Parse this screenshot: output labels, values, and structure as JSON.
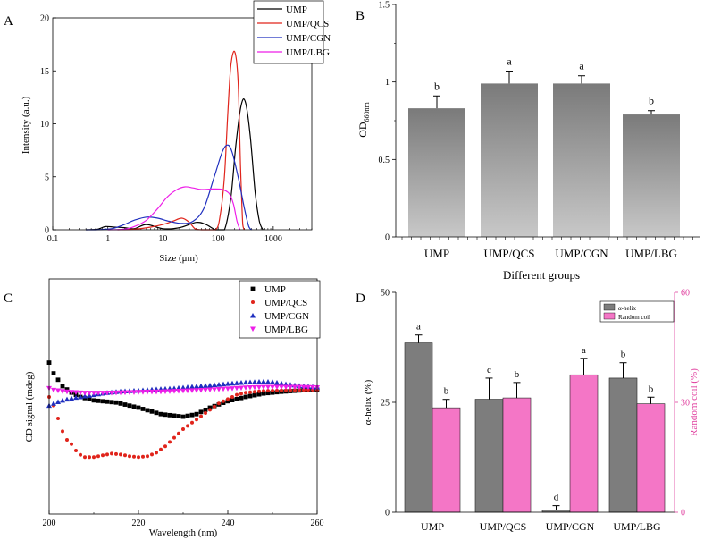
{
  "colors": {
    "black": "#000000",
    "red": "#e0241b",
    "blue": "#1f2fbf",
    "magenta": "#ee1ee8",
    "bar_dark": "#7a7a7a",
    "bar_light": "#c8c8c8",
    "alpha_bar": "#7d7d7d",
    "coil_bar": "#f476c6",
    "coil_axis": "#e0409f"
  },
  "chart_data": [
    {
      "panel": "A",
      "type": "line",
      "xlabel": "Size (μm)",
      "ylabel": "Intensity (a.u.)",
      "xscale": "log",
      "xlim": [
        0.1,
        5000
      ],
      "ylim": [
        0,
        20
      ],
      "xticks": [
        "0.1",
        "1",
        "10",
        "100",
        "1000"
      ],
      "yticks": [
        "0",
        "5",
        "10",
        "15",
        "20"
      ],
      "legend_position": "top-right",
      "series": [
        {
          "name": "UMP",
          "color": "#000000",
          "points": [
            [
              0.4,
              0
            ],
            [
              0.65,
              0.05
            ],
            [
              0.9,
              0.3
            ],
            [
              1.3,
              0.25
            ],
            [
              2,
              0.2
            ],
            [
              3,
              0.1
            ],
            [
              5,
              0.5
            ],
            [
              10,
              0.1
            ],
            [
              20,
              0.2
            ],
            [
              40,
              0.7
            ],
            [
              60,
              0.5
            ],
            [
              90,
              0
            ],
            [
              130,
              0
            ],
            [
              170,
              3
            ],
            [
              210,
              8
            ],
            [
              260,
              11.7
            ],
            [
              310,
              12.1
            ],
            [
              380,
              9
            ],
            [
              470,
              3.5
            ],
            [
              560,
              0.8
            ],
            [
              650,
              0
            ]
          ]
        },
        {
          "name": "UMP/QCS",
          "color": "#e0241b",
          "points": [
            [
              1.5,
              0
            ],
            [
              3,
              0.05
            ],
            [
              6,
              0.25
            ],
            [
              10,
              0.5
            ],
            [
              15,
              0.8
            ],
            [
              22,
              1.1
            ],
            [
              30,
              0.7
            ],
            [
              38,
              0.1
            ],
            [
              50,
              0
            ],
            [
              90,
              0
            ],
            [
              110,
              1.5
            ],
            [
              130,
              5
            ],
            [
              150,
              11
            ],
            [
              170,
              15.5
            ],
            [
              200,
              16.8
            ],
            [
              230,
              14
            ],
            [
              255,
              6
            ],
            [
              280,
              0.5
            ],
            [
              300,
              0
            ]
          ]
        },
        {
          "name": "UMP/CGN",
          "color": "#1f2fbf",
          "points": [
            [
              0.4,
              0
            ],
            [
              0.6,
              0
            ],
            [
              0.9,
              0.05
            ],
            [
              1.3,
              0.15
            ],
            [
              2,
              0.5
            ],
            [
              3,
              0.9
            ],
            [
              5,
              1.2
            ],
            [
              8,
              1.1
            ],
            [
              13,
              0.8
            ],
            [
              22,
              0.6
            ],
            [
              35,
              0.8
            ],
            [
              55,
              2
            ],
            [
              85,
              5
            ],
            [
              120,
              7.4
            ],
            [
              150,
              8
            ],
            [
              180,
              7.3
            ],
            [
              230,
              5
            ],
            [
              300,
              2
            ],
            [
              360,
              0.3
            ],
            [
              410,
              0
            ]
          ]
        },
        {
          "name": "UMP/LBG",
          "color": "#ee1ee8",
          "points": [
            [
              1,
              0
            ],
            [
              2,
              0.05
            ],
            [
              3,
              0.3
            ],
            [
              5,
              0.9
            ],
            [
              8,
              2
            ],
            [
              12,
              3.1
            ],
            [
              18,
              3.8
            ],
            [
              25,
              4.05
            ],
            [
              35,
              3.95
            ],
            [
              50,
              3.8
            ],
            [
              80,
              3.85
            ],
            [
              120,
              3.8
            ],
            [
              160,
              3.4
            ],
            [
              190,
              2.4
            ],
            [
              220,
              0.8
            ],
            [
              250,
              0
            ]
          ]
        }
      ]
    },
    {
      "panel": "B",
      "type": "bar",
      "xlabel": "Different groups",
      "ylabel": "OD660nm",
      "ylim": [
        0,
        1.5
      ],
      "yticks": [
        "0",
        "0.5",
        "1",
        "1.5"
      ],
      "categories": [
        "UMP",
        "UMP/QCS",
        "UMP/CGN",
        "UMP/LBG"
      ],
      "values": [
        0.83,
        0.99,
        0.99,
        0.79
      ],
      "errors": [
        0.08,
        0.08,
        0.05,
        0.025
      ],
      "letters": [
        "b",
        "a",
        "a",
        "b"
      ]
    },
    {
      "panel": "C",
      "type": "scatter",
      "xlabel": "Wavelength (nm)",
      "ylabel": "CD signal (mdeg)",
      "xlim": [
        200,
        260
      ],
      "xticks": [
        "200",
        "220",
        "240",
        "260"
      ],
      "legend_position": "top-right",
      "series": [
        {
          "name": "UMP",
          "color": "#000000",
          "marker": "square",
          "points": [
            [
              200,
              8
            ],
            [
              201,
              5.5
            ],
            [
              203,
              2.5
            ],
            [
              205,
              1
            ],
            [
              207,
              0
            ],
            [
              210,
              -0.8
            ],
            [
              215,
              -1.3
            ],
            [
              220,
              -2.5
            ],
            [
              225,
              -4
            ],
            [
              230,
              -4.6
            ],
            [
              233,
              -4
            ],
            [
              236,
              -2.5
            ],
            [
              240,
              -1
            ],
            [
              244,
              0
            ],
            [
              248,
              0.8
            ],
            [
              252,
              1.2
            ],
            [
              256,
              1.5
            ],
            [
              260,
              1.7
            ]
          ]
        },
        {
          "name": "UMP/QCS",
          "color": "#e0241b",
          "marker": "circle",
          "points": [
            [
              200,
              0
            ],
            [
              201,
              -2
            ],
            [
              202,
              -5
            ],
            [
              203,
              -8
            ],
            [
              204,
              -10
            ],
            [
              205,
              -11
            ],
            [
              206,
              -12.5
            ],
            [
              207,
              -13.5
            ],
            [
              208,
              -14
            ],
            [
              210,
              -14
            ],
            [
              212,
              -13.6
            ],
            [
              214,
              -13.2
            ],
            [
              216,
              -13.4
            ],
            [
              218,
              -13.8
            ],
            [
              220,
              -14
            ],
            [
              222,
              -13.8
            ],
            [
              224,
              -13
            ],
            [
              226,
              -11.5
            ],
            [
              228,
              -9.5
            ],
            [
              230,
              -7.5
            ],
            [
              232,
              -6
            ],
            [
              234,
              -4.5
            ],
            [
              236,
              -3
            ],
            [
              238,
              -1.5
            ],
            [
              240,
              -0.5
            ],
            [
              242,
              0.5
            ],
            [
              244,
              1
            ],
            [
              246,
              1.2
            ],
            [
              248,
              1.4
            ],
            [
              252,
              1.5
            ],
            [
              256,
              1.6
            ],
            [
              260,
              1.7
            ]
          ]
        },
        {
          "name": "UMP/CGN",
          "color": "#1f2fbf",
          "marker": "triangle-up",
          "points": [
            [
              200,
              -2
            ],
            [
              201,
              -1.5
            ],
            [
              203,
              -0.8
            ],
            [
              205,
              -0.3
            ],
            [
              208,
              0.2
            ],
            [
              210,
              0.5
            ],
            [
              213,
              1
            ],
            [
              216,
              1.3
            ],
            [
              220,
              1.5
            ],
            [
              224,
              1.8
            ],
            [
              228,
              2
            ],
            [
              232,
              2.4
            ],
            [
              236,
              2.7
            ],
            [
              240,
              3.1
            ],
            [
              244,
              3.4
            ],
            [
              248,
              3.6
            ],
            [
              250,
              3.5
            ],
            [
              253,
              3
            ],
            [
              256,
              2.6
            ],
            [
              260,
              2.3
            ]
          ]
        },
        {
          "name": "UMP/LBG",
          "color": "#ee1ee8",
          "marker": "triangle-down",
          "points": [
            [
              200,
              2
            ],
            [
              201,
              1.6
            ],
            [
              203,
              1.3
            ],
            [
              205,
              1.1
            ],
            [
              208,
              0.9
            ],
            [
              212,
              0.9
            ],
            [
              216,
              1
            ],
            [
              220,
              1.1
            ],
            [
              225,
              1.2
            ],
            [
              230,
              1.4
            ],
            [
              235,
              1.6
            ],
            [
              240,
              1.9
            ],
            [
              245,
              2.2
            ],
            [
              250,
              2.3
            ],
            [
              255,
              2.3
            ],
            [
              260,
              2.2
            ]
          ]
        }
      ]
    },
    {
      "panel": "D",
      "type": "bar",
      "xlabel": "",
      "ylabel": "α-helix (%)",
      "ylabel_right": "Random coil (%)",
      "ylim": [
        0,
        50
      ],
      "ylim_right": [
        0,
        60
      ],
      "yticks": [
        "0",
        "25",
        "50"
      ],
      "yticks_right": [
        "0",
        "30",
        "60"
      ],
      "categories": [
        "UMP",
        "UMP/QCS",
        "UMP/CGN",
        "UMP/LBG"
      ],
      "legend_position": "top-right",
      "series": [
        {
          "name": "α-helix",
          "axis": "left",
          "values": [
            38.5,
            25.7,
            0.5,
            30.5
          ],
          "errors": [
            1.8,
            4.8,
            1.0,
            3.5
          ],
          "letters": [
            "a",
            "c",
            "d",
            "b"
          ]
        },
        {
          "name": "Random coil",
          "axis": "right",
          "values": [
            28.5,
            31.2,
            37.5,
            29.6
          ],
          "errors": [
            2.3,
            4.2,
            4.5,
            1.8
          ],
          "letters": [
            "b",
            "b",
            "a",
            "b"
          ]
        }
      ]
    }
  ],
  "panels": {
    "a": "A",
    "b": "B",
    "c": "C",
    "d": "D"
  }
}
